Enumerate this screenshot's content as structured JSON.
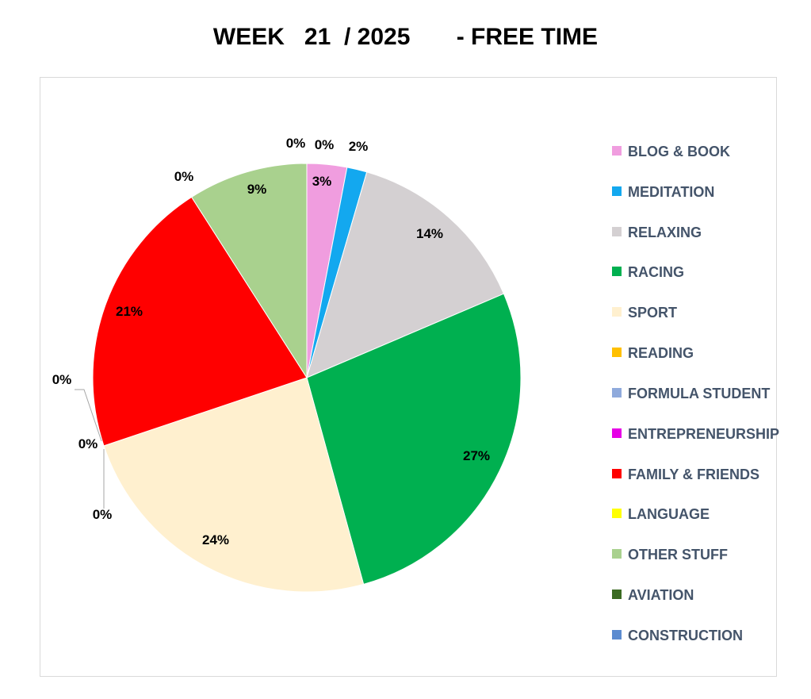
{
  "title": "WEEK   21  / 2025       - FREE TIME",
  "chart_data": {
    "type": "pie",
    "start_angle_deg": 0,
    "direction": "clockwise",
    "legend_position": "right",
    "slices": [
      {
        "name": "BLOG & BOOK",
        "value": 3,
        "label": "3%",
        "color": "#f09ddf"
      },
      {
        "name": "MEDITATION",
        "value": 1.5,
        "label": "2%",
        "color": "#13a8ef"
      },
      {
        "name": "RELAXING",
        "value": 14,
        "label": "14%",
        "color": "#d4d0d2"
      },
      {
        "name": "RACING",
        "value": 27,
        "label": "27%",
        "color": "#00b050"
      },
      {
        "name": "SPORT",
        "value": 24,
        "label": "24%",
        "color": "#fff0cf"
      },
      {
        "name": "READING",
        "value": 0,
        "label": "0%",
        "color": "#ffc000"
      },
      {
        "name": "FORMULA STUDENT",
        "value": 0,
        "label": "0%",
        "color": "#8faadc"
      },
      {
        "name": "ENTREPRENEURSHIP",
        "value": 0,
        "label": "0%",
        "color": "#e600e6"
      },
      {
        "name": "FAMILY & FRIENDS",
        "value": 21,
        "label": "21%",
        "color": "#ff0000"
      },
      {
        "name": "LANGUAGE",
        "value": 0,
        "label": "0%",
        "color": "#ffff00"
      },
      {
        "name": "OTHER STUFF",
        "value": 9,
        "label": "9%",
        "color": "#a9d18e"
      },
      {
        "name": "AVIATION",
        "value": 0,
        "label": "0%",
        "color": "#3b6b22"
      },
      {
        "name": "CONSTRUCTION",
        "value": 0,
        "label": "0%",
        "color": "#5b8bd0"
      }
    ]
  }
}
